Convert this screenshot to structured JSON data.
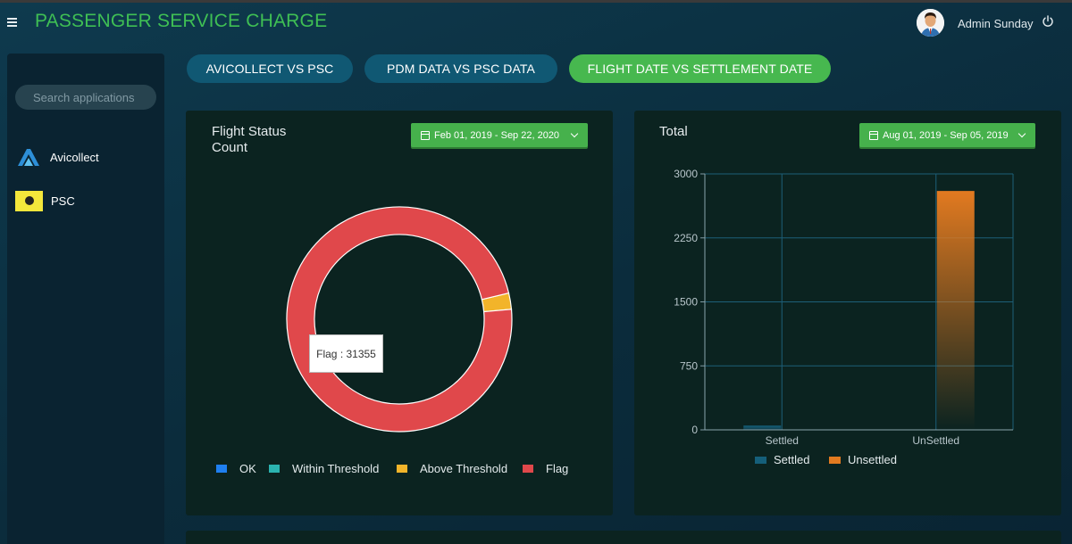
{
  "header": {
    "title": "PASSENGER SERVICE CHARGE",
    "user_name": "Admin Sunday"
  },
  "sidebar": {
    "search_placeholder": "Search applications",
    "items": [
      {
        "label": "Avicollect",
        "icon": "avicollect-logo"
      },
      {
        "label": "PSC",
        "icon": "psc-logo"
      }
    ]
  },
  "tabs": [
    {
      "label": "AVICOLLECT VS PSC",
      "active": false
    },
    {
      "label": "PDM DATA VS PSC DATA",
      "active": false
    },
    {
      "label": "FLIGHT DATE VS SETTLEMENT DATE",
      "active": true
    }
  ],
  "colors": {
    "accent": "#47b84f",
    "title": "#3fbf54",
    "tab_inactive": "#105873",
    "ok": "#1f7ff0",
    "within": "#2bb3b0",
    "above": "#f2b42a",
    "flag": "#e0484b",
    "settled": "#155f7a",
    "unsettled": "#e27a20"
  },
  "flight_status_card": {
    "title_line1": "Flight Status",
    "title_line2": "Count",
    "date_range": "Feb 01, 2019 - Sep 22, 2020",
    "tooltip": "Flag : 31355"
  },
  "total_card": {
    "title": "Total",
    "date_range": "Aug 01, 2019 - Sep 05, 2019"
  },
  "chart_data": [
    {
      "type": "pie",
      "title": "Flight Status Count",
      "donut": true,
      "labels": [
        "OK",
        "Within Threshold",
        "Above Threshold",
        "Flag"
      ],
      "values": [
        0,
        0,
        750,
        31355
      ],
      "legend_position": "bottom"
    },
    {
      "type": "bar",
      "title": "Total",
      "categories": [
        "Settled",
        "UnSettled"
      ],
      "series": [
        {
          "name": "Settled",
          "values": [
            50,
            0
          ]
        },
        {
          "name": "Unsettled",
          "values": [
            0,
            2800
          ]
        }
      ],
      "yticks": [
        "0",
        "750",
        "1500",
        "2250",
        "3000"
      ],
      "ylim": [
        0,
        3000
      ],
      "grid": true,
      "legend_position": "bottom"
    }
  ]
}
